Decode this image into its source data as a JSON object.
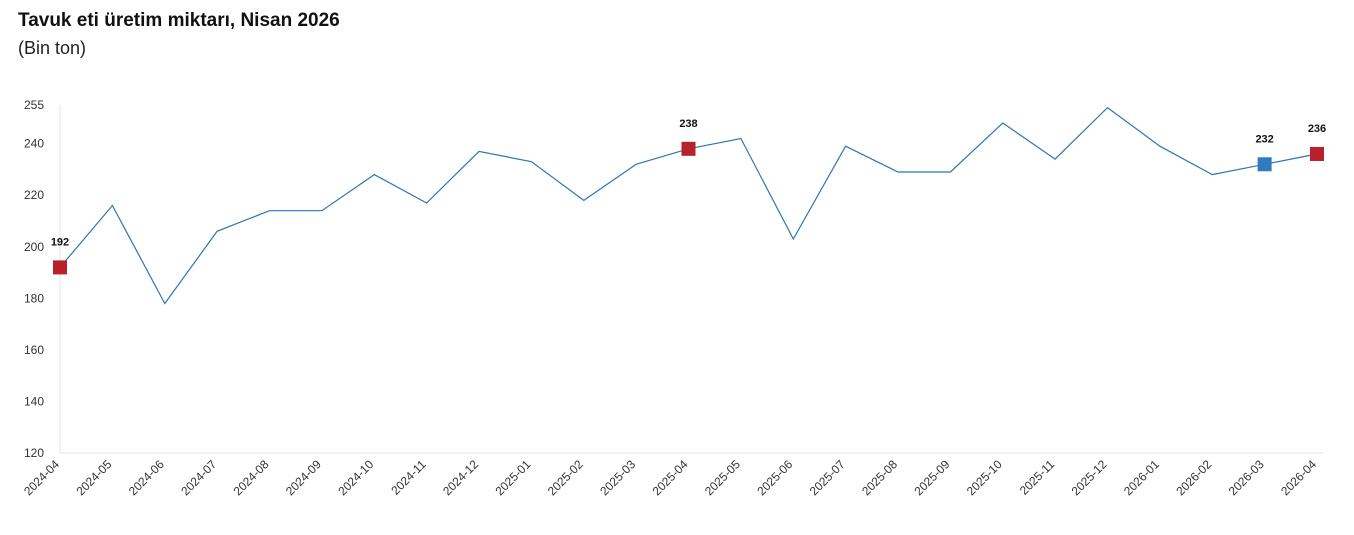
{
  "chart_data": {
    "type": "line",
    "title": "Tavuk eti üretim miktarı, Nisan 2026",
    "subtitle": "(Bin ton)",
    "xlabel": "",
    "ylabel": "",
    "ylim": [
      120,
      255
    ],
    "yticks": [
      120,
      140,
      160,
      180,
      200,
      220,
      240,
      255
    ],
    "grid": false,
    "x": [
      "2024-04",
      "2024-05",
      "2024-06",
      "2024-07",
      "2024-08",
      "2024-09",
      "2024-10",
      "2024-11",
      "2024-12",
      "2025-01",
      "2025-02",
      "2025-03",
      "2025-04",
      "2025-05",
      "2025-06",
      "2025-07",
      "2025-08",
      "2025-09",
      "2025-10",
      "2025-11",
      "2025-12",
      "2026-01",
      "2026-02",
      "2026-03",
      "2026-04"
    ],
    "series": [
      {
        "values": [
          192,
          216,
          178,
          206,
          214,
          214,
          228,
          217,
          237,
          233,
          218,
          232,
          238,
          242,
          203,
          239,
          229,
          229,
          248,
          234,
          254,
          239,
          228,
          232,
          236
        ],
        "color": "#2e75b6"
      }
    ],
    "annotations": [
      {
        "x": "2024-04",
        "value": 192,
        "label": "192",
        "color": "#b8202a"
      },
      {
        "x": "2025-04",
        "value": 238,
        "label": "238",
        "color": "#b8202a"
      },
      {
        "x": "2026-03",
        "value": 232,
        "label": "232",
        "color": "#2e7bbf"
      },
      {
        "x": "2026-04",
        "value": 236,
        "label": "236",
        "color": "#b8202a"
      }
    ]
  }
}
